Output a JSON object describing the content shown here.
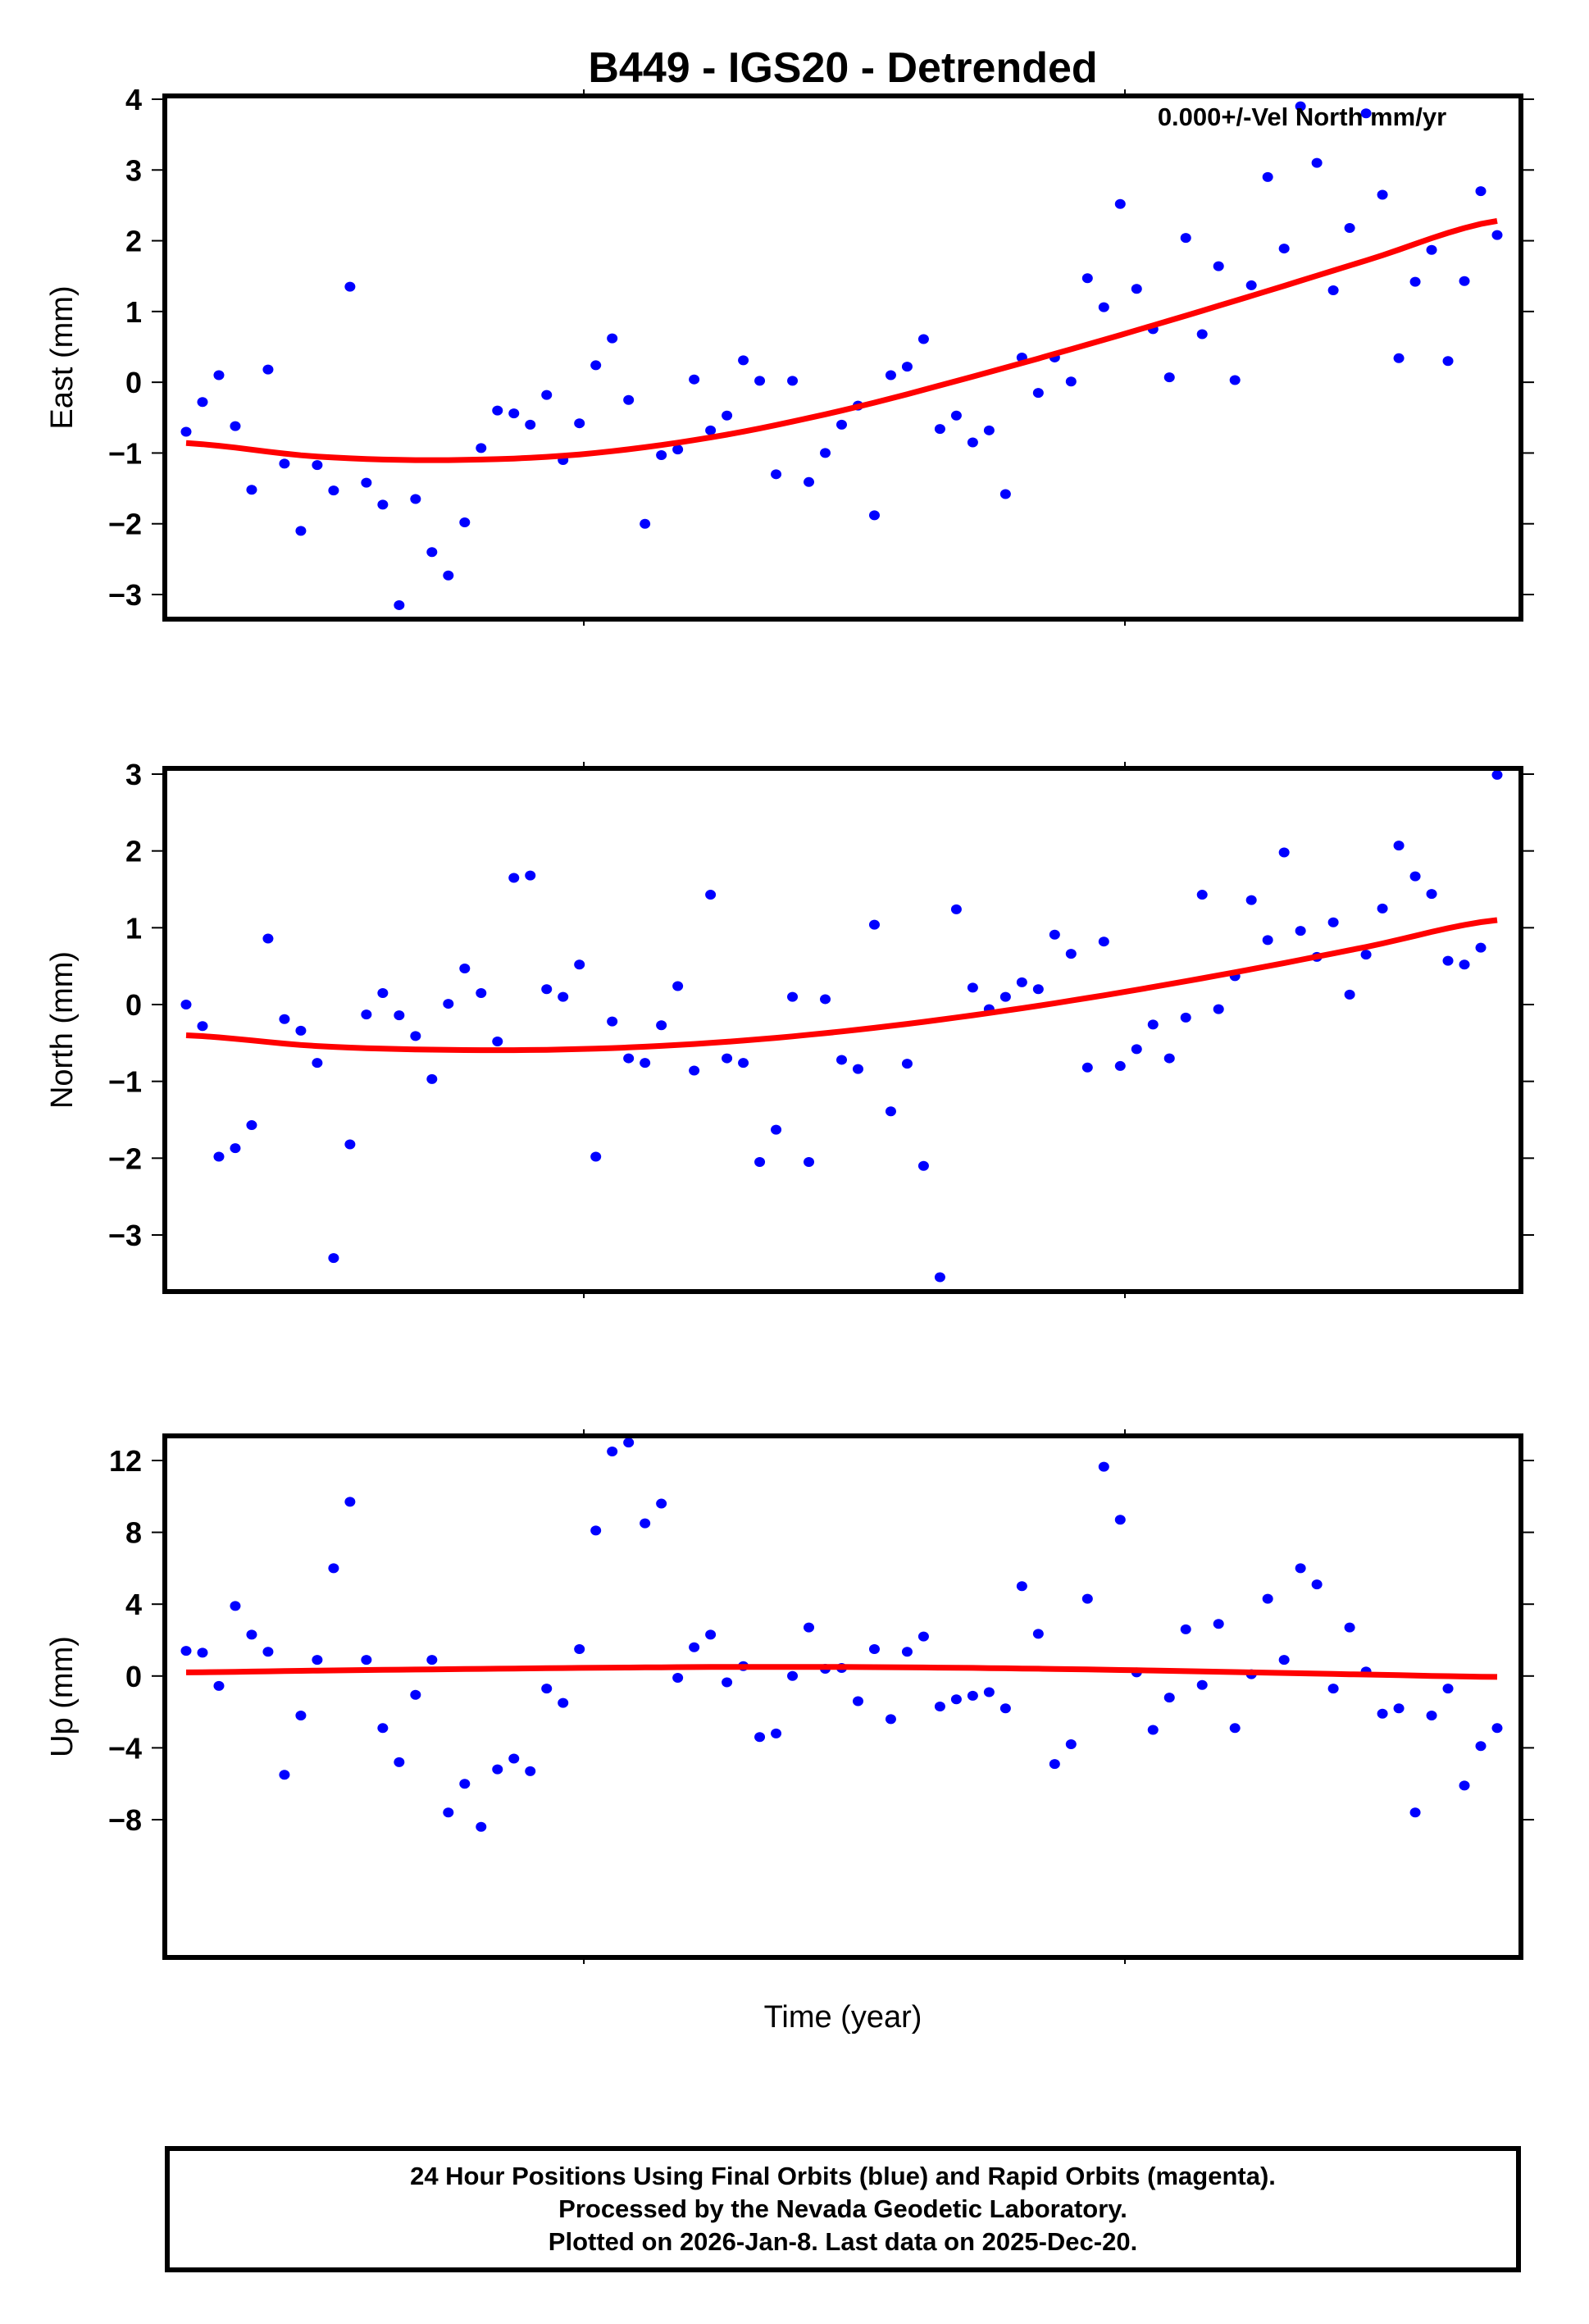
{
  "title": "B449 - IGS20 - Detrended",
  "annotation": "0.000+/-Vel North mm/yr",
  "xlabel": "Time (year)",
  "footer": {
    "line1": "24 Hour Positions Using Final Orbits (blue) and Rapid Orbits (magenta).",
    "line2": "Processed by the Nevada Geodetic Laboratory.",
    "line3": "Plotted on 2026-Jan-8. Last data on 2025-Dec-20."
  },
  "colors": {
    "points": "#0000ff",
    "fit": "#ff0000",
    "axes": "#000000"
  },
  "chart_data": [
    {
      "type": "scatter",
      "title": "B449 - IGS20 - Detrended",
      "panel": "East",
      "ylabel": "East (mm)",
      "xlabel": "",
      "ylim": [
        -3.3,
        4.0
      ],
      "yticks": [
        4,
        3,
        2,
        1,
        0,
        -1,
        -2,
        -3
      ],
      "ytick_labels": [
        "4",
        "3",
        "2",
        "1",
        "0",
        "−1",
        "−2",
        "−3"
      ],
      "grid": false,
      "annotation": "0.000+/-Vel North mm/yr",
      "series": [
        {
          "name": "Final Orbits (blue)",
          "color": "#0000ff",
          "values": [
            -0.7,
            -0.28,
            0.1,
            -0.62,
            -1.52,
            0.18,
            -1.15,
            -2.1,
            -1.17,
            -1.53,
            1.35,
            -1.42,
            -1.73,
            -3.15,
            -1.65,
            -2.4,
            -2.73,
            -1.98,
            -0.93,
            -0.4,
            -0.44,
            -0.6,
            -0.18,
            -1.1,
            -0.58,
            0.24,
            0.62,
            -0.25,
            -2.0,
            -1.03,
            -0.95,
            0.04,
            -0.68,
            -0.47,
            0.31,
            0.02,
            -1.3,
            0.02,
            -1.41,
            -1.0,
            -0.6,
            -0.33,
            -1.88,
            0.1,
            0.22,
            0.61,
            -0.66,
            -0.47,
            -0.85,
            -0.68,
            -1.58,
            0.35,
            -0.15,
            0.35,
            0.01,
            1.47,
            1.06,
            2.52,
            1.32,
            0.75,
            0.07,
            2.04,
            0.68,
            1.64,
            0.03,
            1.37,
            2.9,
            1.89,
            3.9,
            3.1,
            1.3,
            2.18,
            3.8,
            2.65,
            0.34,
            1.42,
            1.87,
            0.3,
            1.43,
            2.7,
            2.08
          ]
        },
        {
          "name": "Fit",
          "color": "#ff0000",
          "type": "line",
          "x_frac": [
            0.0,
            0.1,
            0.2,
            0.3,
            0.4,
            0.5,
            0.6,
            0.7,
            0.8,
            0.9,
            1.0
          ],
          "values": [
            -0.86,
            -1.05,
            -1.1,
            -1.02,
            -0.78,
            -0.4,
            0.08,
            0.6,
            1.15,
            1.72,
            2.28
          ]
        }
      ]
    },
    {
      "type": "scatter",
      "panel": "North",
      "ylabel": "North (mm)",
      "xlabel": "",
      "ylim": [
        -3.65,
        3.1
      ],
      "yticks": [
        3,
        2,
        1,
        0,
        -1,
        -2,
        -3
      ],
      "ytick_labels": [
        "3",
        "2",
        "1",
        "0",
        "−1",
        "−2",
        "−3"
      ],
      "grid": false,
      "series": [
        {
          "name": "Final Orbits (blue)",
          "color": "#0000ff",
          "values": [
            0.0,
            -0.28,
            -1.98,
            -1.87,
            -1.57,
            0.86,
            -0.19,
            -0.34,
            -0.76,
            -3.3,
            -1.82,
            -0.13,
            0.15,
            -0.14,
            -0.41,
            -0.97,
            0.01,
            0.47,
            0.15,
            -0.48,
            1.65,
            1.68,
            0.2,
            0.1,
            0.52,
            -1.98,
            -0.22,
            -0.7,
            -0.76,
            -0.27,
            0.24,
            -0.86,
            1.43,
            -0.7,
            -0.76,
            -2.05,
            -1.63,
            0.1,
            -2.05,
            0.07,
            -0.72,
            -0.84,
            1.04,
            -1.39,
            -0.77,
            -2.1,
            -3.55,
            1.24,
            0.22,
            -0.06,
            0.1,
            0.29,
            0.2,
            0.91,
            0.66,
            -0.82,
            0.82,
            -0.8,
            -0.58,
            -0.26,
            -0.7,
            -0.17,
            1.43,
            -0.06,
            0.37,
            1.36,
            0.84,
            1.98,
            0.96,
            0.62,
            1.07,
            0.13,
            0.65,
            1.25,
            2.07,
            1.67,
            1.44,
            0.57,
            0.52,
            0.74,
            2.99
          ]
        },
        {
          "name": "Fit",
          "color": "#ff0000",
          "type": "line",
          "x_frac": [
            0.0,
            0.1,
            0.2,
            0.3,
            0.4,
            0.5,
            0.6,
            0.7,
            0.8,
            0.9,
            1.0
          ],
          "values": [
            -0.4,
            -0.54,
            -0.59,
            -0.58,
            -0.5,
            -0.35,
            -0.14,
            0.12,
            0.42,
            0.75,
            1.1
          ]
        }
      ]
    },
    {
      "type": "scatter",
      "panel": "Up",
      "ylabel": "Up (mm)",
      "xlabel": "Time (year)",
      "ylim": [
        -8.8,
        13.5
      ],
      "yticks": [
        12,
        8,
        4,
        0,
        -4,
        -8
      ],
      "ytick_labels": [
        "12",
        "8",
        "4",
        "0",
        "−4",
        "−8"
      ],
      "grid": false,
      "series": [
        {
          "name": "Final Orbits (blue)",
          "color": "#0000ff",
          "values": [
            1.4,
            1.3,
            -0.55,
            3.9,
            2.3,
            1.35,
            -5.5,
            -2.2,
            0.9,
            6.0,
            9.7,
            0.9,
            -2.9,
            -4.8,
            -1.05,
            0.9,
            -7.6,
            -6.0,
            -8.4,
            -5.2,
            -4.6,
            -5.3,
            -0.7,
            -1.5,
            1.5,
            8.1,
            12.5,
            13.0,
            8.5,
            9.6,
            -0.1,
            1.6,
            2.3,
            -0.35,
            0.55,
            -3.4,
            -3.2,
            0.0,
            2.7,
            0.4,
            0.45,
            -1.4,
            1.5,
            -2.4,
            1.35,
            2.2,
            -1.7,
            -1.3,
            -1.1,
            -0.9,
            -1.8,
            5.0,
            2.35,
            -4.9,
            -3.8,
            4.3,
            11.65,
            8.7,
            0.2,
            -3.0,
            -1.2,
            2.6,
            -0.5,
            2.9,
            -2.9,
            0.1,
            4.3,
            0.9,
            6.0,
            5.1,
            -0.7,
            2.7,
            0.25,
            -2.1,
            -1.8,
            -7.6,
            -2.2,
            -0.7,
            -6.1,
            -3.9,
            -2.9
          ]
        },
        {
          "name": "Fit",
          "color": "#ff0000",
          "type": "line",
          "x_frac": [
            0.0,
            0.1,
            0.2,
            0.3,
            0.4,
            0.5,
            0.6,
            0.7,
            0.8,
            0.9,
            1.0
          ],
          "values": [
            0.2,
            0.3,
            0.38,
            0.45,
            0.5,
            0.5,
            0.45,
            0.35,
            0.22,
            0.08,
            -0.05
          ]
        }
      ]
    }
  ]
}
